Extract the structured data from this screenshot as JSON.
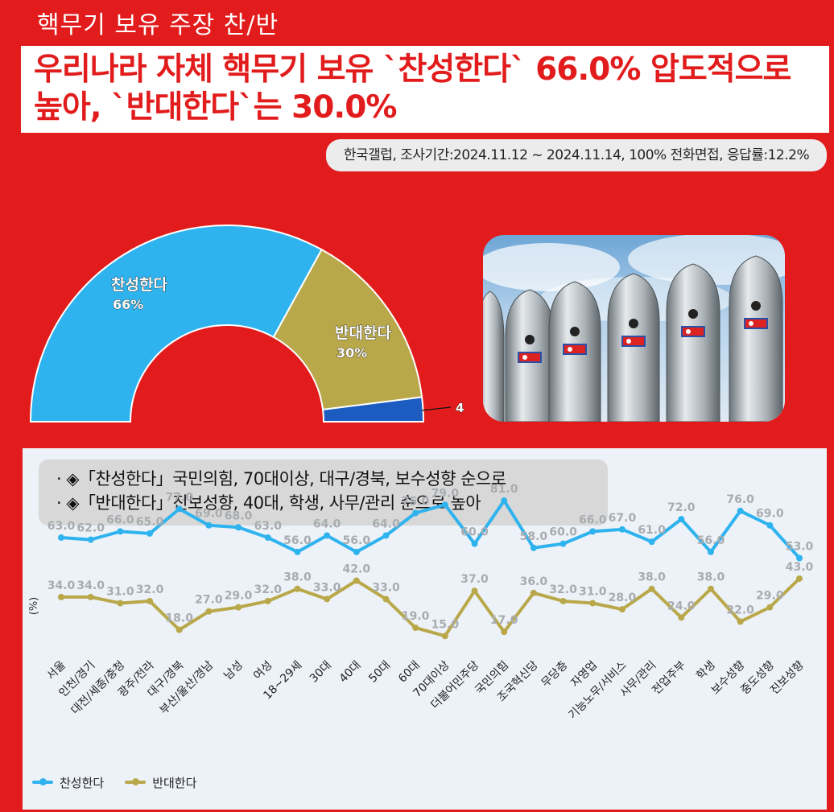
{
  "header": {
    "top_label": "핵무기 보유 주장 찬/반",
    "headline_line1": "우리나라 자체 핵무기 보유 `찬성한다` 66.0% 압도적으로",
    "headline_line2": "높아, `반대한다`는 30.0%",
    "source": "한국갤럽, 조사기간:2024.11.12 ~ 2024.11.14, 100% 전화면접, 응답률:12.2%"
  },
  "notes": [
    "· ◈「찬성한다」국민의힘, 70대이상, 대구/경북, 보수성향 순으로",
    "· ◈「반대한다」진보성향, 40대, 학생, 사무/관리 순으로 높아"
  ],
  "colors": {
    "background": "#e21c1c",
    "agree": "#2fb3ee",
    "disagree": "#b9a84a",
    "other": "#1c5bc0",
    "panel": "#edf2f9"
  },
  "photo": {
    "icon": "nuclear-missiles-photo"
  },
  "chart_data": [
    {
      "type": "pie",
      "subtype": "half-donut",
      "slices": [
        {
          "name": "찬성한다",
          "value": 66,
          "label": "66%"
        },
        {
          "name": "반대한다",
          "value": 30,
          "label": "30%"
        },
        {
          "name": "",
          "value": 4,
          "label": "4"
        }
      ]
    },
    {
      "type": "line",
      "ylabel": "(%)",
      "categories": [
        "서울",
        "인천/경기",
        "대전/세종/충청",
        "광주/전라",
        "대구/경북",
        "부산/울산/경남",
        "남성",
        "여성",
        "18~29세",
        "30대",
        "40대",
        "50대",
        "60대",
        "70대이상",
        "더불어민주당",
        "국민의힘",
        "조국혁신당",
        "무당층",
        "자영업",
        "기능노무/서비스",
        "사무/관리",
        "전업주부",
        "학생",
        "보수성향",
        "중도성향",
        "진보성향"
      ],
      "series": [
        {
          "name": "찬성한다",
          "values": [
            63,
            62,
            66,
            65,
            77,
            69,
            68,
            63,
            56,
            64,
            56,
            64,
            75,
            79,
            60,
            81,
            58,
            60,
            66,
            67,
            61,
            72,
            56,
            76,
            69,
            53
          ]
        },
        {
          "name": "반대한다",
          "values": [
            34,
            34,
            31,
            32,
            18,
            27,
            29,
            32,
            38,
            33,
            42,
            33,
            19,
            15,
            37,
            17,
            36,
            32,
            31,
            28,
            38,
            24,
            38,
            22,
            29,
            43
          ]
        }
      ],
      "legend": "bottom-left",
      "grid": false
    }
  ]
}
